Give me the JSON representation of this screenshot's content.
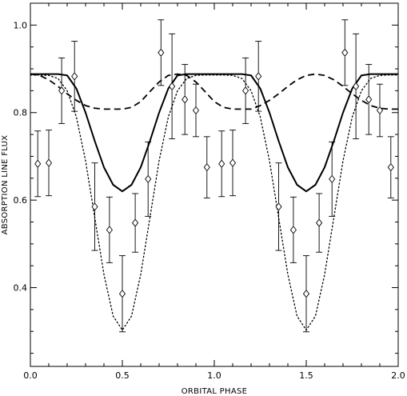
{
  "chart_data": {
    "type": "scatter",
    "title": "",
    "xlabel": "ORBITAL PHASE",
    "ylabel": "ABSORPTION LINE FLUX",
    "xlim": [
      0.0,
      2.0
    ],
    "ylim": [
      0.22,
      1.05
    ],
    "xticks": [
      0.0,
      0.5,
      1.0,
      1.5,
      2.0
    ],
    "xtick_labels": [
      "0.0",
      "0.5",
      "1.0",
      "1.5",
      "2.0"
    ],
    "yticks": [
      0.4,
      0.6,
      0.8,
      1.0
    ],
    "ytick_labels": [
      "0.4",
      "0.6",
      "0.8",
      "1.0"
    ],
    "grid": false,
    "legend": "none",
    "series": [
      {
        "style": "points-with-errorbars",
        "marker": "diamond",
        "points": [
          {
            "x": 0.04,
            "y": 0.683,
            "err": 0.075
          },
          {
            "x": 0.1,
            "y": 0.685,
            "err": 0.075
          },
          {
            "x": 0.17,
            "y": 0.85,
            "err": 0.075
          },
          {
            "x": 0.24,
            "y": 0.883,
            "err": 0.08
          },
          {
            "x": 0.35,
            "y": 0.585,
            "err": 0.1
          },
          {
            "x": 0.43,
            "y": 0.532,
            "err": 0.075
          },
          {
            "x": 0.5,
            "y": 0.386,
            "err": 0.087
          },
          {
            "x": 0.57,
            "y": 0.548,
            "err": 0.067
          },
          {
            "x": 0.64,
            "y": 0.648,
            "err": 0.085
          },
          {
            "x": 0.71,
            "y": 0.937,
            "err": 0.075
          },
          {
            "x": 0.77,
            "y": 0.86,
            "err": 0.12
          },
          {
            "x": 0.84,
            "y": 0.83,
            "err": 0.08
          },
          {
            "x": 0.9,
            "y": 0.805,
            "err": 0.06
          },
          {
            "x": 0.96,
            "y": 0.675,
            "err": 0.07
          },
          {
            "x": 1.04,
            "y": 0.683,
            "err": 0.075
          },
          {
            "x": 1.1,
            "y": 0.685,
            "err": 0.075
          },
          {
            "x": 1.17,
            "y": 0.85,
            "err": 0.075
          },
          {
            "x": 1.24,
            "y": 0.883,
            "err": 0.08
          },
          {
            "x": 1.35,
            "y": 0.585,
            "err": 0.1
          },
          {
            "x": 1.43,
            "y": 0.532,
            "err": 0.075
          },
          {
            "x": 1.5,
            "y": 0.386,
            "err": 0.087
          },
          {
            "x": 1.57,
            "y": 0.548,
            "err": 0.067
          },
          {
            "x": 1.64,
            "y": 0.648,
            "err": 0.085
          },
          {
            "x": 1.71,
            "y": 0.937,
            "err": 0.075
          },
          {
            "x": 1.77,
            "y": 0.86,
            "err": 0.12
          },
          {
            "x": 1.84,
            "y": 0.83,
            "err": 0.08
          },
          {
            "x": 1.9,
            "y": 0.805,
            "err": 0.06
          },
          {
            "x": 1.96,
            "y": 0.675,
            "err": 0.07
          }
        ]
      },
      {
        "style": "solid-line",
        "x": [
          0.0,
          0.05,
          0.1,
          0.15,
          0.2,
          0.25,
          0.3,
          0.35,
          0.4,
          0.45,
          0.5,
          0.55,
          0.6,
          0.65,
          0.7,
          0.75,
          0.8,
          0.85,
          0.9,
          0.95,
          1.0,
          1.05,
          1.1,
          1.15,
          1.2,
          1.25,
          1.3,
          1.35,
          1.4,
          1.45,
          1.5,
          1.55,
          1.6,
          1.65,
          1.7,
          1.75,
          1.8,
          1.85,
          1.9,
          1.95,
          2.0
        ],
        "y": [
          0.888,
          0.888,
          0.888,
          0.888,
          0.885,
          0.855,
          0.8,
          0.735,
          0.675,
          0.635,
          0.62,
          0.635,
          0.675,
          0.735,
          0.8,
          0.855,
          0.885,
          0.888,
          0.888,
          0.888,
          0.888,
          0.888,
          0.888,
          0.888,
          0.885,
          0.855,
          0.8,
          0.735,
          0.675,
          0.635,
          0.62,
          0.635,
          0.675,
          0.735,
          0.8,
          0.855,
          0.885,
          0.888,
          0.888,
          0.888,
          0.888
        ]
      },
      {
        "style": "dashed-line",
        "x": [
          0.0,
          0.05,
          0.1,
          0.15,
          0.2,
          0.25,
          0.3,
          0.35,
          0.4,
          0.45,
          0.5,
          0.55,
          0.6,
          0.65,
          0.7,
          0.75,
          0.8,
          0.85,
          0.9,
          0.95,
          1.0,
          1.05,
          1.1,
          1.15,
          1.2,
          1.25,
          1.3,
          1.35,
          1.4,
          1.45,
          1.5,
          1.55,
          1.6,
          1.65,
          1.7,
          1.75,
          1.8,
          1.85,
          1.9,
          1.95,
          2.0
        ],
        "y": [
          0.888,
          0.885,
          0.875,
          0.86,
          0.843,
          0.828,
          0.816,
          0.81,
          0.808,
          0.808,
          0.808,
          0.812,
          0.825,
          0.848,
          0.87,
          0.885,
          0.888,
          0.885,
          0.87,
          0.848,
          0.825,
          0.812,
          0.808,
          0.808,
          0.808,
          0.816,
          0.828,
          0.843,
          0.86,
          0.875,
          0.885,
          0.888,
          0.885,
          0.875,
          0.86,
          0.843,
          0.828,
          0.816,
          0.81,
          0.808,
          0.808
        ]
      },
      {
        "style": "dotted-line",
        "x": [
          0.0,
          0.05,
          0.1,
          0.15,
          0.2,
          0.25,
          0.3,
          0.35,
          0.4,
          0.45,
          0.5,
          0.55,
          0.6,
          0.65,
          0.7,
          0.75,
          0.8,
          0.85,
          0.9,
          0.95,
          1.0,
          1.05,
          1.1,
          1.15,
          1.2,
          1.25,
          1.3,
          1.35,
          1.4,
          1.45,
          1.5,
          1.55,
          1.6,
          1.65,
          1.7,
          1.75,
          1.8,
          1.85,
          1.9,
          1.95,
          2.0
        ],
        "y": [
          0.886,
          0.886,
          0.885,
          0.878,
          0.85,
          0.79,
          0.69,
          0.56,
          0.43,
          0.335,
          0.303,
          0.335,
          0.43,
          0.56,
          0.69,
          0.79,
          0.85,
          0.878,
          0.885,
          0.886,
          0.886,
          0.886,
          0.885,
          0.878,
          0.85,
          0.79,
          0.69,
          0.56,
          0.43,
          0.335,
          0.303,
          0.335,
          0.43,
          0.56,
          0.69,
          0.79,
          0.85,
          0.878,
          0.885,
          0.886,
          0.886
        ]
      }
    ]
  }
}
